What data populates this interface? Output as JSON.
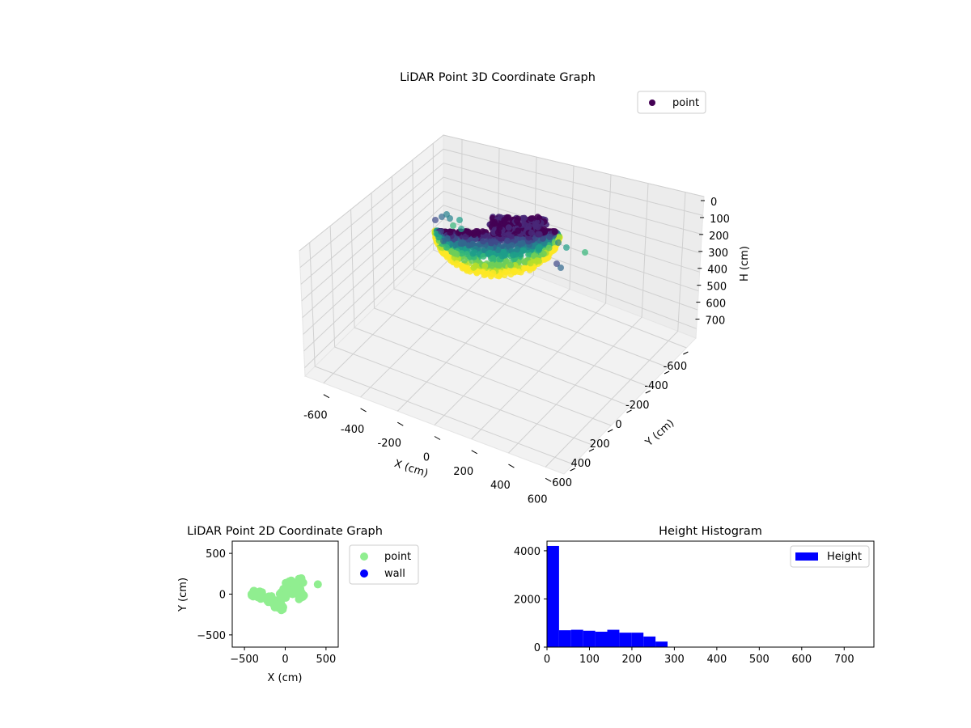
{
  "figure": {
    "background": "#ffffff"
  },
  "chart_data": [
    {
      "type": "scatter",
      "title": "LiDAR Point 3D Coordinate Graph",
      "xlabel": "X (cm)",
      "ylabel": "Y (cm)",
      "zlabel": "H (cm)",
      "xlim": [
        -700,
        700
      ],
      "ylim": [
        -700,
        700
      ],
      "zlim": [
        0,
        750
      ],
      "z_inverted": true,
      "grid": true,
      "x_ticks": [
        -600,
        -400,
        -200,
        0,
        200,
        400,
        600
      ],
      "y_ticks": [
        -600,
        -400,
        -200,
        0,
        200,
        400,
        600
      ],
      "z_ticks": [
        0,
        100,
        200,
        300,
        400,
        500,
        600,
        700
      ],
      "colormap": "viridis",
      "legend": {
        "placement": "top-right",
        "entries": [
          "point"
        ]
      },
      "series": [
        {
          "name": "point",
          "color": "#440154"
        }
      ]
    },
    {
      "type": "scatter",
      "title": "LiDAR Point 2D Coordinate Graph",
      "xlabel": "X (cm)",
      "ylabel": "Y (cm)",
      "xlim": [
        -650,
        650
      ],
      "ylim": [
        -650,
        650
      ],
      "x_ticks": [
        -500,
        0,
        500
      ],
      "y_ticks": [
        -500,
        0,
        500
      ],
      "legend": {
        "placement": "outside-right",
        "entries": [
          "point",
          "wall"
        ]
      },
      "series": [
        {
          "name": "point",
          "color": "#90ee90"
        },
        {
          "name": "wall",
          "color": "#0000ff"
        }
      ]
    },
    {
      "type": "bar",
      "title": "Height Histogram",
      "xlabel": "",
      "ylabel": "",
      "xlim": [
        0,
        770
      ],
      "ylim": [
        0,
        4400
      ],
      "x_ticks": [
        0,
        100,
        200,
        300,
        400,
        500,
        600,
        700
      ],
      "y_ticks": [
        0,
        2000,
        4000
      ],
      "color": "#0000ff",
      "legend": {
        "placement": "top-right",
        "entries": [
          "Height"
        ]
      },
      "bin_edges": [
        0,
        28.4,
        56.8,
        85.2,
        113.6,
        142,
        170.4,
        198.8,
        227.2,
        255.6,
        284
      ],
      "values": [
        4200,
        700,
        720,
        680,
        640,
        720,
        600,
        600,
        440,
        230
      ],
      "series": [
        {
          "name": "Height"
        }
      ]
    }
  ]
}
